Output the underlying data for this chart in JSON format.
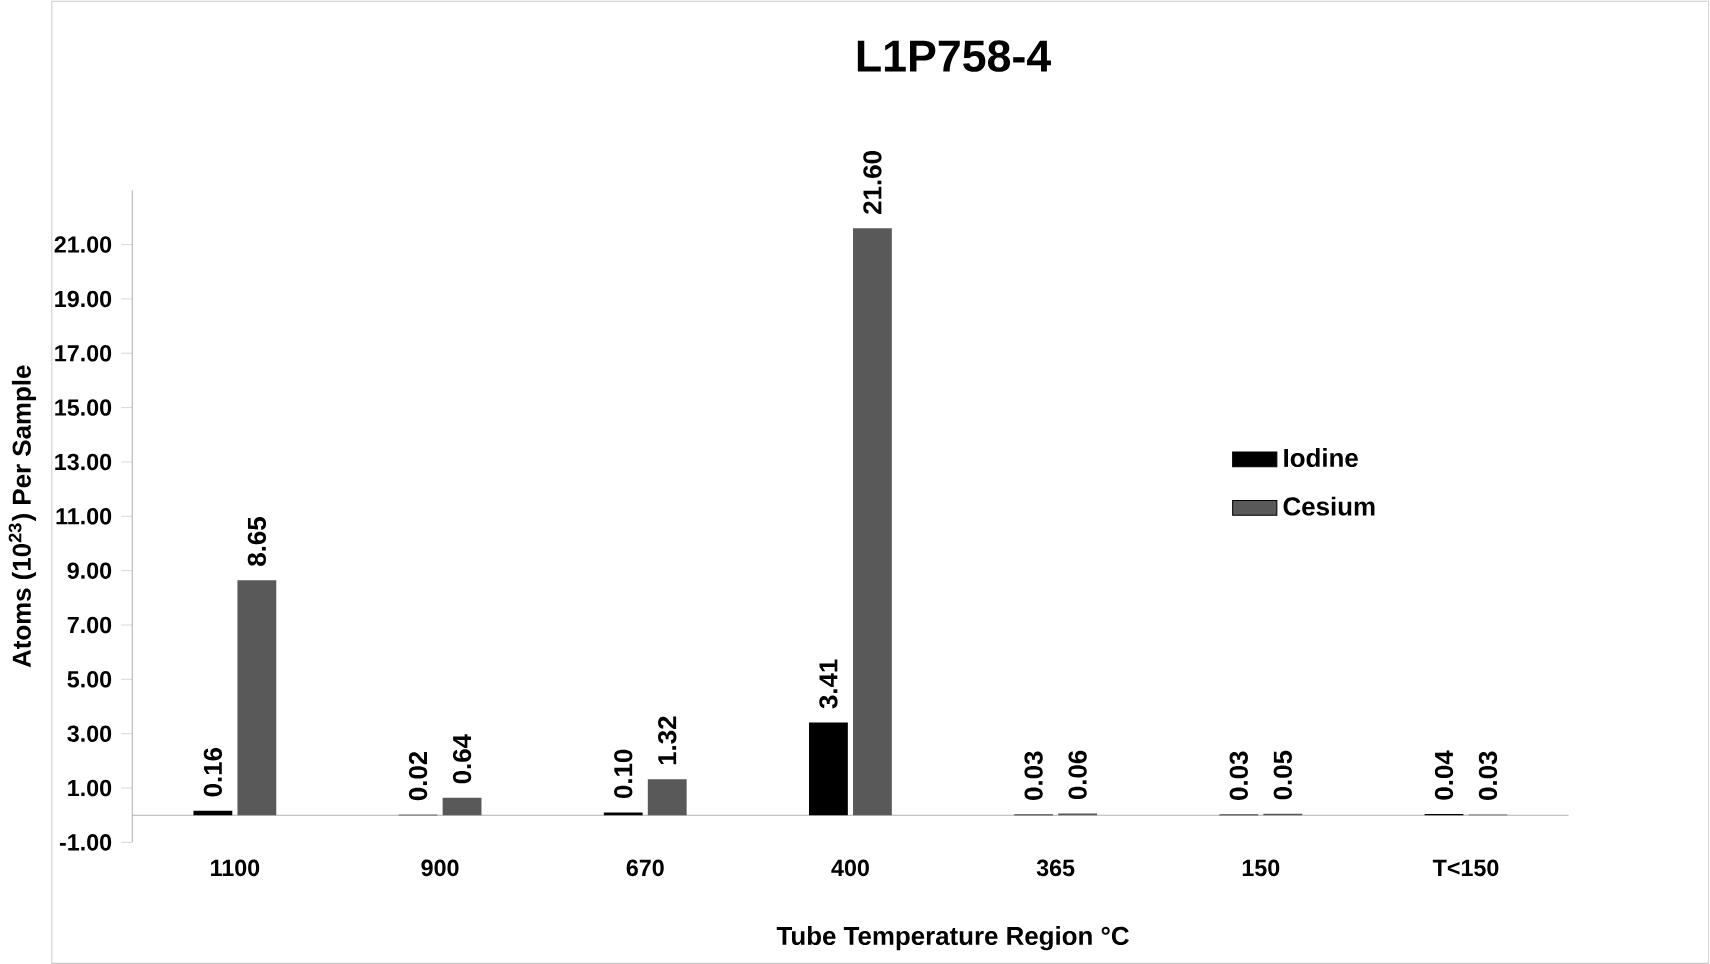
{
  "chart_data": {
    "type": "bar",
    "title": "L1P758-4",
    "xlabel": "Tube  Temperature Region °C",
    "ylabel": "Atoms (10$^{23}$) Per Sample",
    "categories": [
      "1100",
      "900",
      "670",
      "400",
      "365",
      "150",
      "T<150"
    ],
    "series": [
      {
        "name": "Iodine",
        "color": "#000000",
        "values": [
          0.16,
          0.02,
          0.1,
          3.41,
          0.03,
          0.03,
          0.04
        ],
        "value_labels": [
          "0.16",
          "0.02",
          "0.10",
          "3.41",
          "0.03",
          "0.03",
          "0.04"
        ]
      },
      {
        "name": "Cesium",
        "color": "#595959",
        "values": [
          8.65,
          0.64,
          1.32,
          21.6,
          0.06,
          0.05,
          0.03
        ],
        "value_labels": [
          "8.65",
          "0.64",
          "1.32",
          "21.60",
          "0.06",
          "0.05",
          "0.03"
        ]
      }
    ],
    "ylim": [
      -1,
      23
    ],
    "yticks": [
      {
        "value": -1,
        "label": "-1.00"
      },
      {
        "value": 1,
        "label": "1.00"
      },
      {
        "value": 3,
        "label": "3.00"
      },
      {
        "value": 5,
        "label": "5.00"
      },
      {
        "value": 7,
        "label": "7.00"
      },
      {
        "value": 9,
        "label": "9.00"
      },
      {
        "value": 11,
        "label": "11.00"
      },
      {
        "value": 13,
        "label": "13.00"
      },
      {
        "value": 15,
        "label": "15.00"
      },
      {
        "value": 17,
        "label": "17.00"
      },
      {
        "value": 19,
        "label": "19.00"
      },
      {
        "value": 21,
        "label": "21.00"
      }
    ],
    "grid": false,
    "legend": "right"
  }
}
